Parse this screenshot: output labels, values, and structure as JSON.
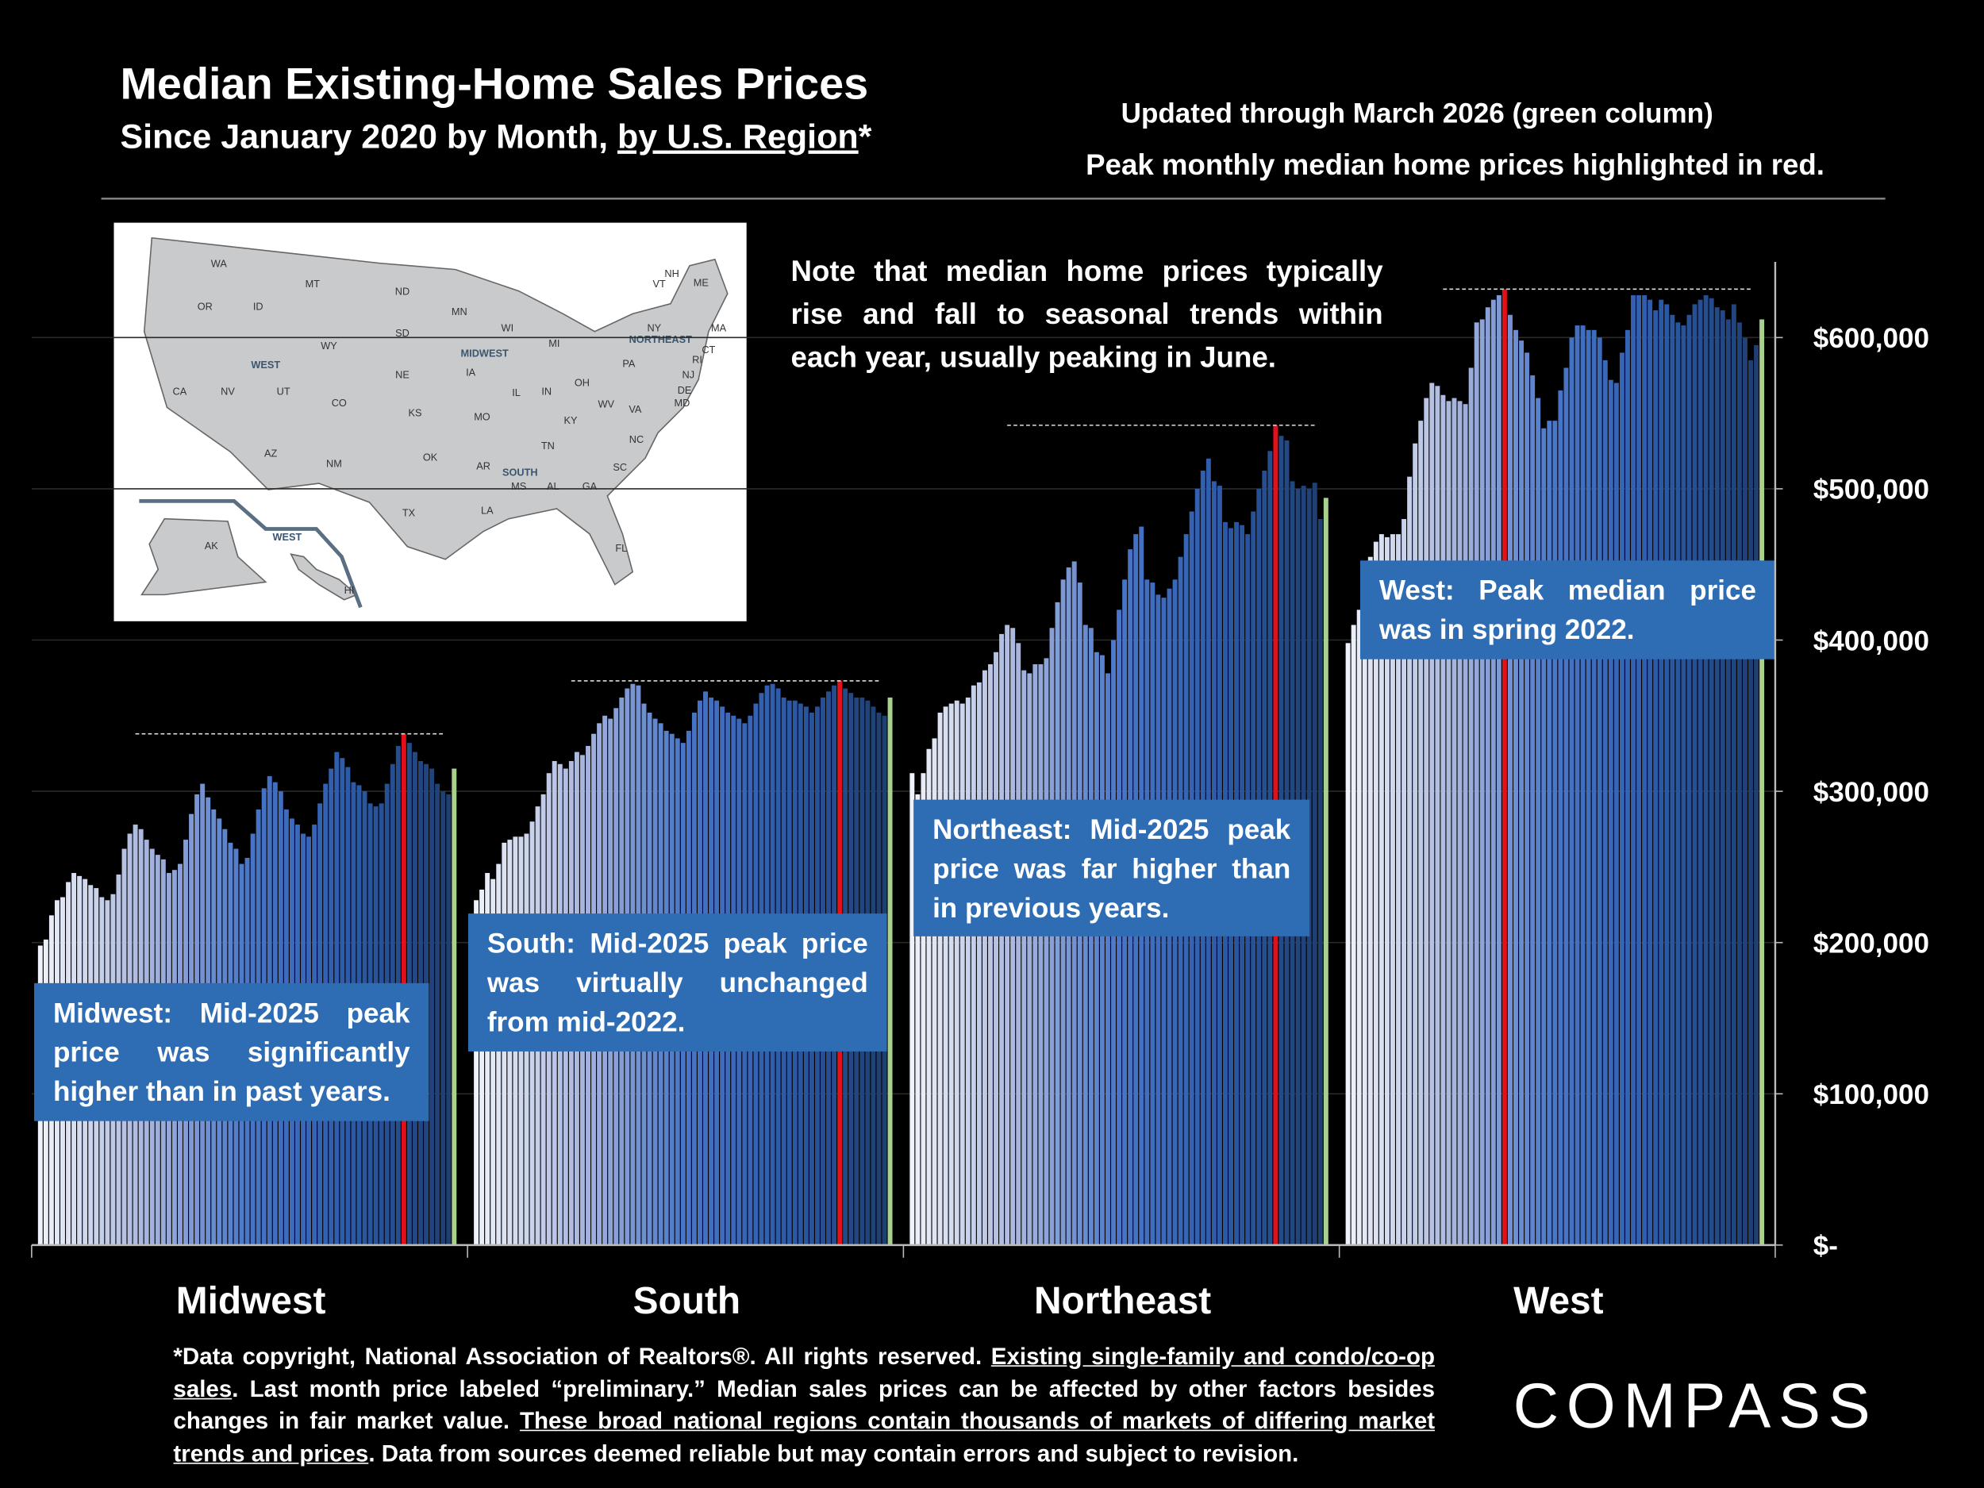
{
  "chart_data": {
    "type": "grouped_monthly_bar",
    "title": "Median Existing-Home Sales Prices",
    "subtitle_parts": [
      "Since January 2020 by Month, ",
      "by U.S. Region",
      "*"
    ],
    "subtitle_underlined": [
      1
    ],
    "update_note": "Updated through March 2026 (green column)",
    "peak_note": "Peak monthly median home prices highlighted in red.",
    "seasonal_note": "Note that median home prices typically rise and fall to seasonal trends within each year, usually peaking in June.",
    "ylim": [
      0,
      650000
    ],
    "yticks": [
      {
        "value": 0,
        "label": "$-"
      },
      {
        "value": 100000,
        "label": "$100,000"
      },
      {
        "value": 200000,
        "label": "$200,000"
      },
      {
        "value": 300000,
        "label": "$300,000"
      },
      {
        "value": 400000,
        "label": "$400,000"
      },
      {
        "value": 500000,
        "label": "$500,000"
      },
      {
        "value": 600000,
        "label": "$600,000"
      }
    ],
    "grid": true,
    "color_stops": [
      "#eef2fa",
      "#aab7de",
      "#4a76c9",
      "#2c5aa8",
      "#1e3d6e"
    ],
    "peak_color": "#e3101b",
    "last_color": "#a9d18e",
    "box_color": "#2e6db4",
    "peak_note_color": "#f4d28a",
    "groups": [
      {
        "name": "Midwest",
        "annotation": "Midwest: Mid-2025 peak price was significantly higher than in past years.",
        "values": [
          198000,
          202000,
          218000,
          228000,
          230000,
          240000,
          246000,
          244000,
          242000,
          238000,
          236000,
          230000,
          228000,
          232000,
          245000,
          262000,
          272000,
          278000,
          275000,
          268000,
          262000,
          258000,
          255000,
          246000,
          248000,
          252000,
          268000,
          285000,
          298000,
          305000,
          296000,
          288000,
          282000,
          275000,
          266000,
          262000,
          252000,
          256000,
          272000,
          288000,
          302000,
          310000,
          306000,
          300000,
          288000,
          282000,
          278000,
          272000,
          270000,
          278000,
          292000,
          305000,
          315000,
          326000,
          322000,
          316000,
          306000,
          304000,
          300000,
          292000,
          290000,
          292000,
          305000,
          318000,
          330000,
          338000,
          332000,
          326000,
          320000,
          318000,
          315000,
          305000,
          300000,
          298000,
          315000
        ]
      },
      {
        "name": "South",
        "annotation": "South: Mid-2025 peak price was virtually unchanged from mid-2022.",
        "values": [
          228000,
          235000,
          246000,
          242000,
          252000,
          266000,
          268000,
          270000,
          270000,
          272000,
          280000,
          290000,
          298000,
          312000,
          320000,
          318000,
          315000,
          320000,
          326000,
          324000,
          330000,
          338000,
          345000,
          350000,
          348000,
          355000,
          362000,
          368000,
          371000,
          370000,
          358000,
          352000,
          348000,
          345000,
          340000,
          338000,
          335000,
          332000,
          340000,
          352000,
          360000,
          366000,
          362000,
          360000,
          356000,
          352000,
          350000,
          348000,
          345000,
          350000,
          358000,
          365000,
          370000,
          371000,
          368000,
          362000,
          360000,
          360000,
          358000,
          356000,
          352000,
          356000,
          362000,
          366000,
          370000,
          373000,
          368000,
          365000,
          362000,
          362000,
          360000,
          356000,
          352000,
          350000,
          362000
        ]
      },
      {
        "name": "Northeast",
        "annotation": "Northeast: Mid-2025 peak price was far higher than in previous years.",
        "values": [
          312000,
          298000,
          312000,
          328000,
          335000,
          352000,
          356000,
          358000,
          360000,
          358000,
          362000,
          370000,
          372000,
          380000,
          384000,
          392000,
          404000,
          410000,
          408000,
          398000,
          380000,
          378000,
          384000,
          384000,
          388000,
          408000,
          425000,
          440000,
          448000,
          452000,
          438000,
          410000,
          408000,
          392000,
          390000,
          378000,
          400000,
          420000,
          440000,
          460000,
          470000,
          475000,
          440000,
          438000,
          430000,
          428000,
          434000,
          440000,
          455000,
          470000,
          485000,
          500000,
          512000,
          520000,
          505000,
          502000,
          478000,
          474000,
          478000,
          476000,
          470000,
          485000,
          500000,
          512000,
          525000,
          542000,
          535000,
          532000,
          505000,
          500000,
          502000,
          500000,
          504000,
          480000,
          494000
        ]
      },
      {
        "name": "West",
        "annotation": "West: Peak median price was in spring 2022.",
        "values": [
          398000,
          410000,
          420000,
          430000,
          455000,
          465000,
          470000,
          468000,
          470000,
          470000,
          480000,
          508000,
          530000,
          545000,
          560000,
          570000,
          568000,
          562000,
          558000,
          560000,
          558000,
          556000,
          580000,
          610000,
          612000,
          620000,
          625000,
          628000,
          632000,
          615000,
          605000,
          598000,
          590000,
          575000,
          560000,
          540000,
          545000,
          545000,
          565000,
          580000,
          600000,
          608000,
          608000,
          605000,
          605000,
          600000,
          585000,
          572000,
          570000,
          590000,
          605000,
          628000,
          628000,
          628000,
          625000,
          618000,
          625000,
          622000,
          615000,
          610000,
          608000,
          615000,
          622000,
          625000,
          628000,
          626000,
          620000,
          618000,
          612000,
          622000,
          610000,
          600000,
          585000,
          595000,
          612000
        ]
      }
    ],
    "map_labels": [
      "WA",
      "MT",
      "ND",
      "MN",
      "WI",
      "MI",
      "NY",
      "VT",
      "NH",
      "ME",
      "MA",
      "OR",
      "ID",
      "SD",
      "WY",
      "IA",
      "CT",
      "RI",
      "PA",
      "NJ",
      "NE",
      "IL",
      "IN",
      "OH",
      "DE",
      "MD",
      "WV",
      "VA",
      "CA",
      "NV",
      "UT",
      "CO",
      "KS",
      "MO",
      "KY",
      "NC",
      "TN",
      "AZ",
      "NM",
      "OK",
      "AR",
      "SC",
      "MS",
      "AL",
      "GA",
      "TX",
      "LA",
      "FL",
      "AK",
      "HI"
    ],
    "map_regions": [
      "WEST",
      "MIDWEST",
      "NORTHEAST",
      "SOUTH",
      "WEST"
    ],
    "footnote_parts": [
      "*Data copyright, National Association of Realtors®. All rights reserved. ",
      "Existing single-family and condo/co-op sales",
      ". Last month price labeled “preliminary.” Median sales prices can be affected by other factors besides changes in fair market value. ",
      "These broad national regions contain thousands of markets of differing market trends and prices",
      ". Data from sources deemed reliable but may contain errors and subject to revision."
    ],
    "footnote_underlined": [
      1,
      3
    ],
    "logo": "COMPASS"
  }
}
